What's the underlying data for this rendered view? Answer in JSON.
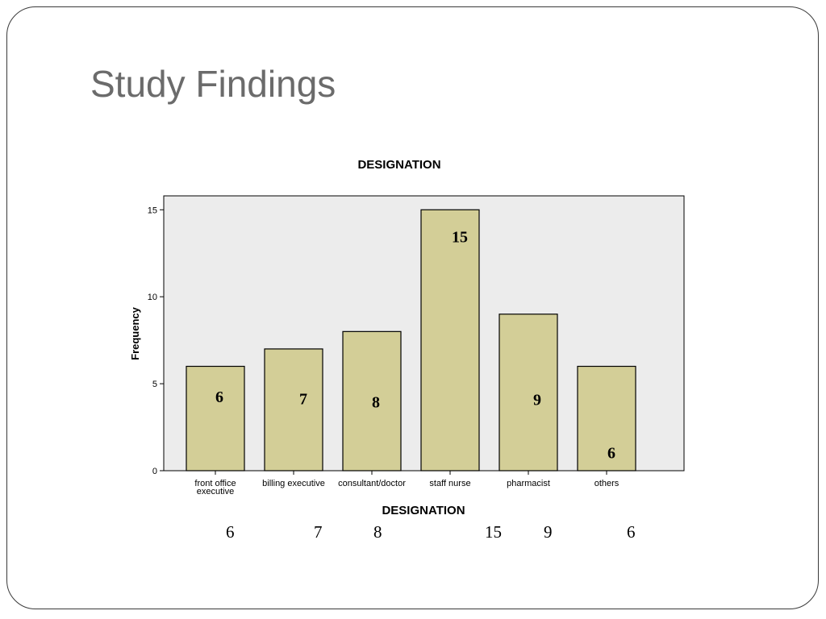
{
  "slide": {
    "title": "Study Findings"
  },
  "chart_data": {
    "type": "bar",
    "title": "DESIGNATION",
    "xlabel": "DESIGNATION",
    "ylabel": "Frequency",
    "categories": [
      [
        "front office",
        "executive"
      ],
      [
        "billing executive"
      ],
      [
        "consultant/doctor"
      ],
      [
        "staff nurse"
      ],
      [
        "pharmacist"
      ],
      [
        "others"
      ]
    ],
    "values": [
      6,
      7,
      8,
      15,
      9,
      6
    ],
    "data_labels": [
      "6",
      "7",
      "8",
      "15",
      "9",
      "6"
    ],
    "y_ticks": [
      0,
      5,
      10,
      15
    ],
    "ylim": [
      0,
      15.8
    ],
    "grid": false,
    "plot_background": "#ececec",
    "bar_color": "#d3ce97",
    "bar_edge_color": "#000000"
  },
  "below_values": [
    "6",
    "7",
    "8",
    "15",
    "9",
    "6"
  ]
}
